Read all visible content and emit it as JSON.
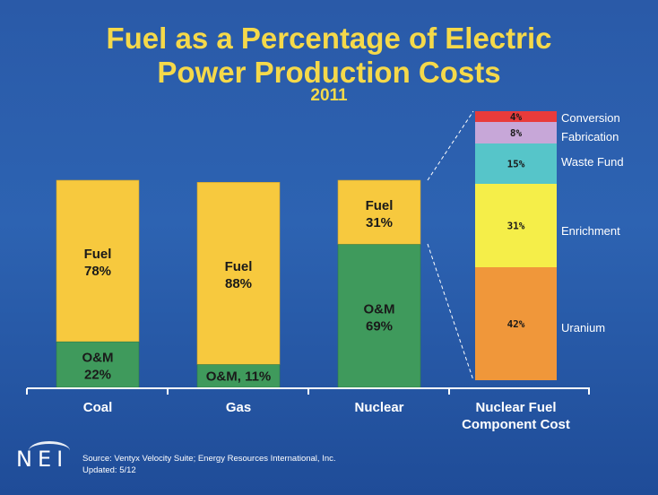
{
  "slide": {
    "title_line1": "Fuel as a Percentage of Electric",
    "title_line2": "Power Production Costs",
    "year": "2011",
    "logo_text": "NEI",
    "source_line1": "Source: Ventyx Velocity Suite; Energy Resources International, Inc.",
    "source_line2": "Updated: 5/12"
  },
  "colors": {
    "fuel": "#f7c93e",
    "om": "#3f9a5c",
    "conversion": "#e83b3b",
    "fabrication": "#c7a7d8",
    "waste_fund": "#56c5c9",
    "enrichment": "#f5ee49",
    "uranium": "#f0973a",
    "text_dark": "#1a1a1a",
    "title": "#f5d94a"
  },
  "chart_data": [
    {
      "type": "bar",
      "stacked": true,
      "categories": [
        "Coal",
        "Gas",
        "Nuclear"
      ],
      "series": [
        {
          "name": "O&M",
          "values": [
            22,
            11,
            69
          ],
          "labels": [
            "O&M\n22%",
            "O&M, 11%",
            "O&M\n69%"
          ]
        },
        {
          "name": "Fuel",
          "values": [
            78,
            88,
            31
          ],
          "labels": [
            "Fuel\n78%",
            "Fuel\n88%",
            "Fuel\n31%"
          ]
        }
      ],
      "ylim": [
        0,
        100
      ]
    },
    {
      "type": "bar",
      "stacked": true,
      "categories": [
        "Nuclear Fuel\nComponent Cost"
      ],
      "segments": [
        {
          "name": "Uranium",
          "value": 42,
          "label": "42%",
          "color_key": "uranium"
        },
        {
          "name": "Enrichment",
          "value": 31,
          "label": "31%",
          "color_key": "enrichment"
        },
        {
          "name": "Waste Fund",
          "value": 15,
          "label": "15%",
          "color_key": "waste_fund"
        },
        {
          "name": "Fabrication",
          "value": 8,
          "label": "8%",
          "color_key": "fabrication"
        },
        {
          "name": "Conversion",
          "value": 4,
          "label": "4%",
          "color_key": "conversion"
        }
      ],
      "ylim": [
        0,
        100
      ]
    }
  ]
}
